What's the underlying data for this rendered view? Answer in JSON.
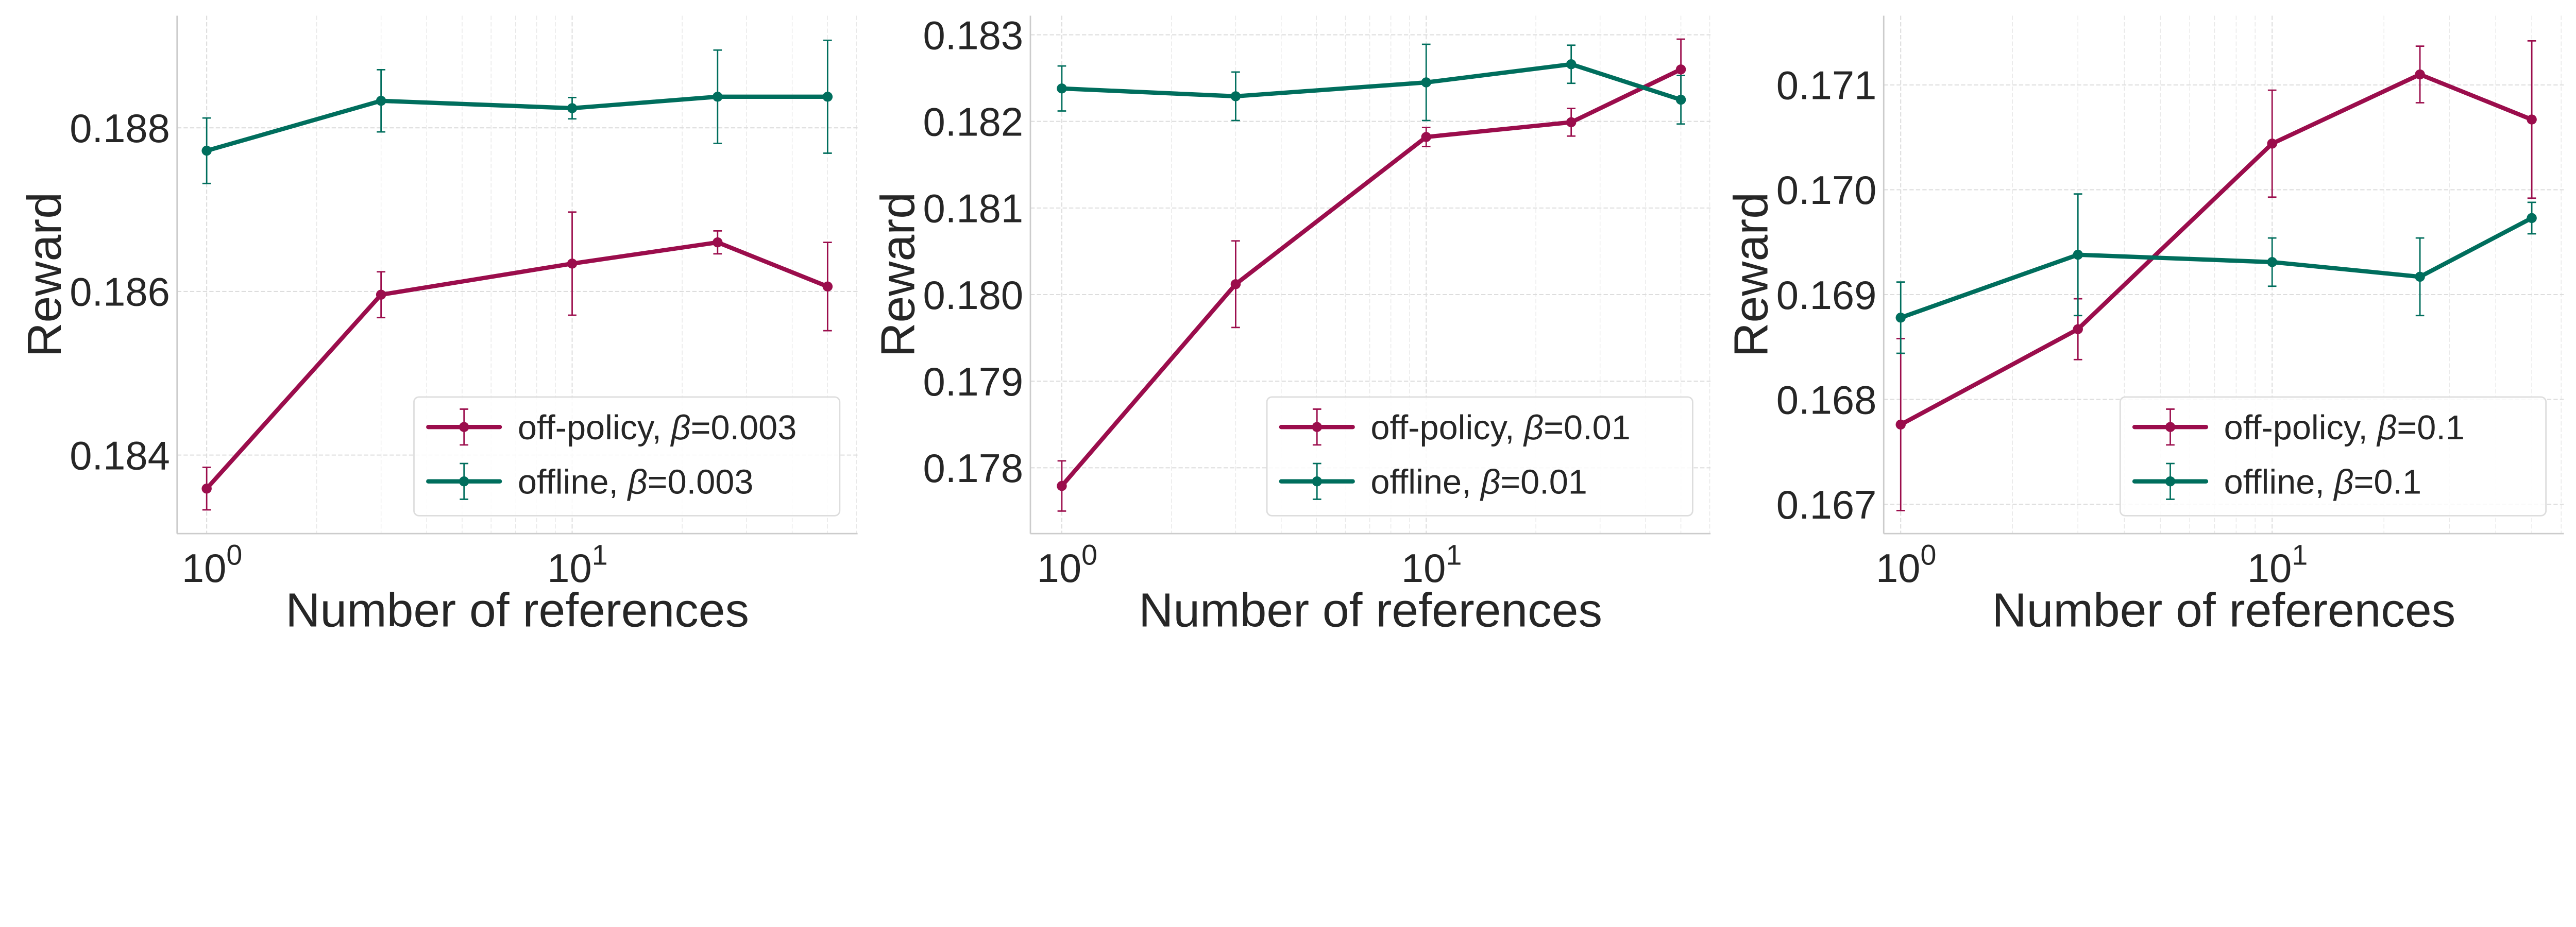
{
  "colors": {
    "off_policy": "#9b0d4c",
    "offline": "#006e5d",
    "grid": "#dddddd",
    "spine": "#cccccc",
    "text": "#262626"
  },
  "chart_data": [
    {
      "type": "line",
      "xlabel": "Number of references",
      "ylabel": "Reward",
      "xscale": "log",
      "xlim": [
        0.83,
        60.4
      ],
      "ylim": [
        0.18304,
        0.18937
      ],
      "x_ticks": [
        {
          "value": 1,
          "base": "10",
          "exp": "0"
        },
        {
          "value": 10,
          "base": "10",
          "exp": "1"
        }
      ],
      "y_ticks": [
        {
          "value": 0.184,
          "label": "0.184"
        },
        {
          "value": 0.186,
          "label": "0.186"
        },
        {
          "value": 0.188,
          "label": "0.188"
        }
      ],
      "grid": true,
      "legend_position": "lower-right",
      "x": [
        1,
        3,
        10,
        25,
        50
      ],
      "series": [
        {
          "name": "off-policy",
          "beta_symbol": "β",
          "beta_text": "=0.003",
          "name_prefix": "off-policy, ",
          "color_key": "off_policy",
          "values": [
            0.18359,
            0.18596,
            0.18634,
            0.1866,
            0.18606
          ],
          "errors": [
            0.00026,
            0.00028,
            0.00063,
            0.00014,
            0.00054
          ]
        },
        {
          "name": "offline",
          "beta_symbol": "β",
          "beta_text": "=0.003",
          "name_prefix": "offline, ",
          "color_key": "offline",
          "values": [
            0.18772,
            0.18833,
            0.18824,
            0.18838,
            0.18838
          ],
          "errors": [
            0.0004,
            0.00038,
            0.00013,
            0.00057,
            0.00069
          ]
        }
      ]
    },
    {
      "type": "line",
      "xlabel": "Number of references",
      "ylabel": "Reward",
      "xscale": "log",
      "xlim": [
        0.82,
        60.3
      ],
      "ylim": [
        0.17724,
        0.18322
      ],
      "x_ticks": [
        {
          "value": 1,
          "base": "10",
          "exp": "0"
        },
        {
          "value": 10,
          "base": "10",
          "exp": "1"
        }
      ],
      "y_ticks": [
        {
          "value": 0.178,
          "label": "0.178"
        },
        {
          "value": 0.179,
          "label": "0.179"
        },
        {
          "value": 0.18,
          "label": "0.180"
        },
        {
          "value": 0.181,
          "label": "0.181"
        },
        {
          "value": 0.182,
          "label": "0.182"
        },
        {
          "value": 0.183,
          "label": "0.183"
        }
      ],
      "grid": true,
      "legend_position": "lower-right",
      "x": [
        1,
        3,
        10,
        25,
        50
      ],
      "series": [
        {
          "name": "off-policy",
          "beta_symbol": "β",
          "beta_text": "=0.01",
          "name_prefix": "off-policy, ",
          "color_key": "off_policy",
          "values": [
            0.17779,
            0.18012,
            0.18182,
            0.18199,
            0.1826
          ],
          "errors": [
            0.00029,
            0.0005,
            0.00011,
            0.00016,
            0.00035
          ]
        },
        {
          "name": "offline",
          "beta_symbol": "β",
          "beta_text": "=0.01",
          "name_prefix": "offline, ",
          "color_key": "offline",
          "values": [
            0.18238,
            0.18229,
            0.18245,
            0.18266,
            0.18225
          ],
          "errors": [
            0.00026,
            0.00028,
            0.00044,
            0.00022,
            0.00028
          ]
        }
      ]
    },
    {
      "type": "line",
      "xlabel": "Number of references",
      "ylabel": "Reward",
      "xscale": "log",
      "xlim": [
        0.9,
        61.0
      ],
      "ylim": [
        0.16672,
        0.17166
      ],
      "x_ticks": [
        {
          "value": 1,
          "base": "10",
          "exp": "0"
        },
        {
          "value": 10,
          "base": "10",
          "exp": "1"
        }
      ],
      "y_ticks": [
        {
          "value": 0.167,
          "label": "0.167"
        },
        {
          "value": 0.168,
          "label": "0.168"
        },
        {
          "value": 0.169,
          "label": "0.169"
        },
        {
          "value": 0.17,
          "label": "0.170"
        },
        {
          "value": 0.171,
          "label": "0.171"
        }
      ],
      "grid": true,
      "legend_position": "lower-right",
      "x": [
        1,
        3,
        10,
        25,
        50
      ],
      "series": [
        {
          "name": "off-policy",
          "beta_symbol": "β",
          "beta_text": "=0.1",
          "name_prefix": "off-policy, ",
          "color_key": "off_policy",
          "values": [
            0.16776,
            0.16867,
            0.17044,
            0.1711,
            0.17067
          ],
          "errors": [
            0.00082,
            0.00029,
            0.00051,
            0.00027,
            0.00075
          ]
        },
        {
          "name": "offline",
          "beta_symbol": "β",
          "beta_text": "=0.1",
          "name_prefix": "offline, ",
          "color_key": "offline",
          "values": [
            0.16878,
            0.16938,
            0.16931,
            0.16917,
            0.16973
          ],
          "errors": [
            0.00034,
            0.00058,
            0.00023,
            0.00037,
            0.00015
          ]
        }
      ]
    }
  ]
}
